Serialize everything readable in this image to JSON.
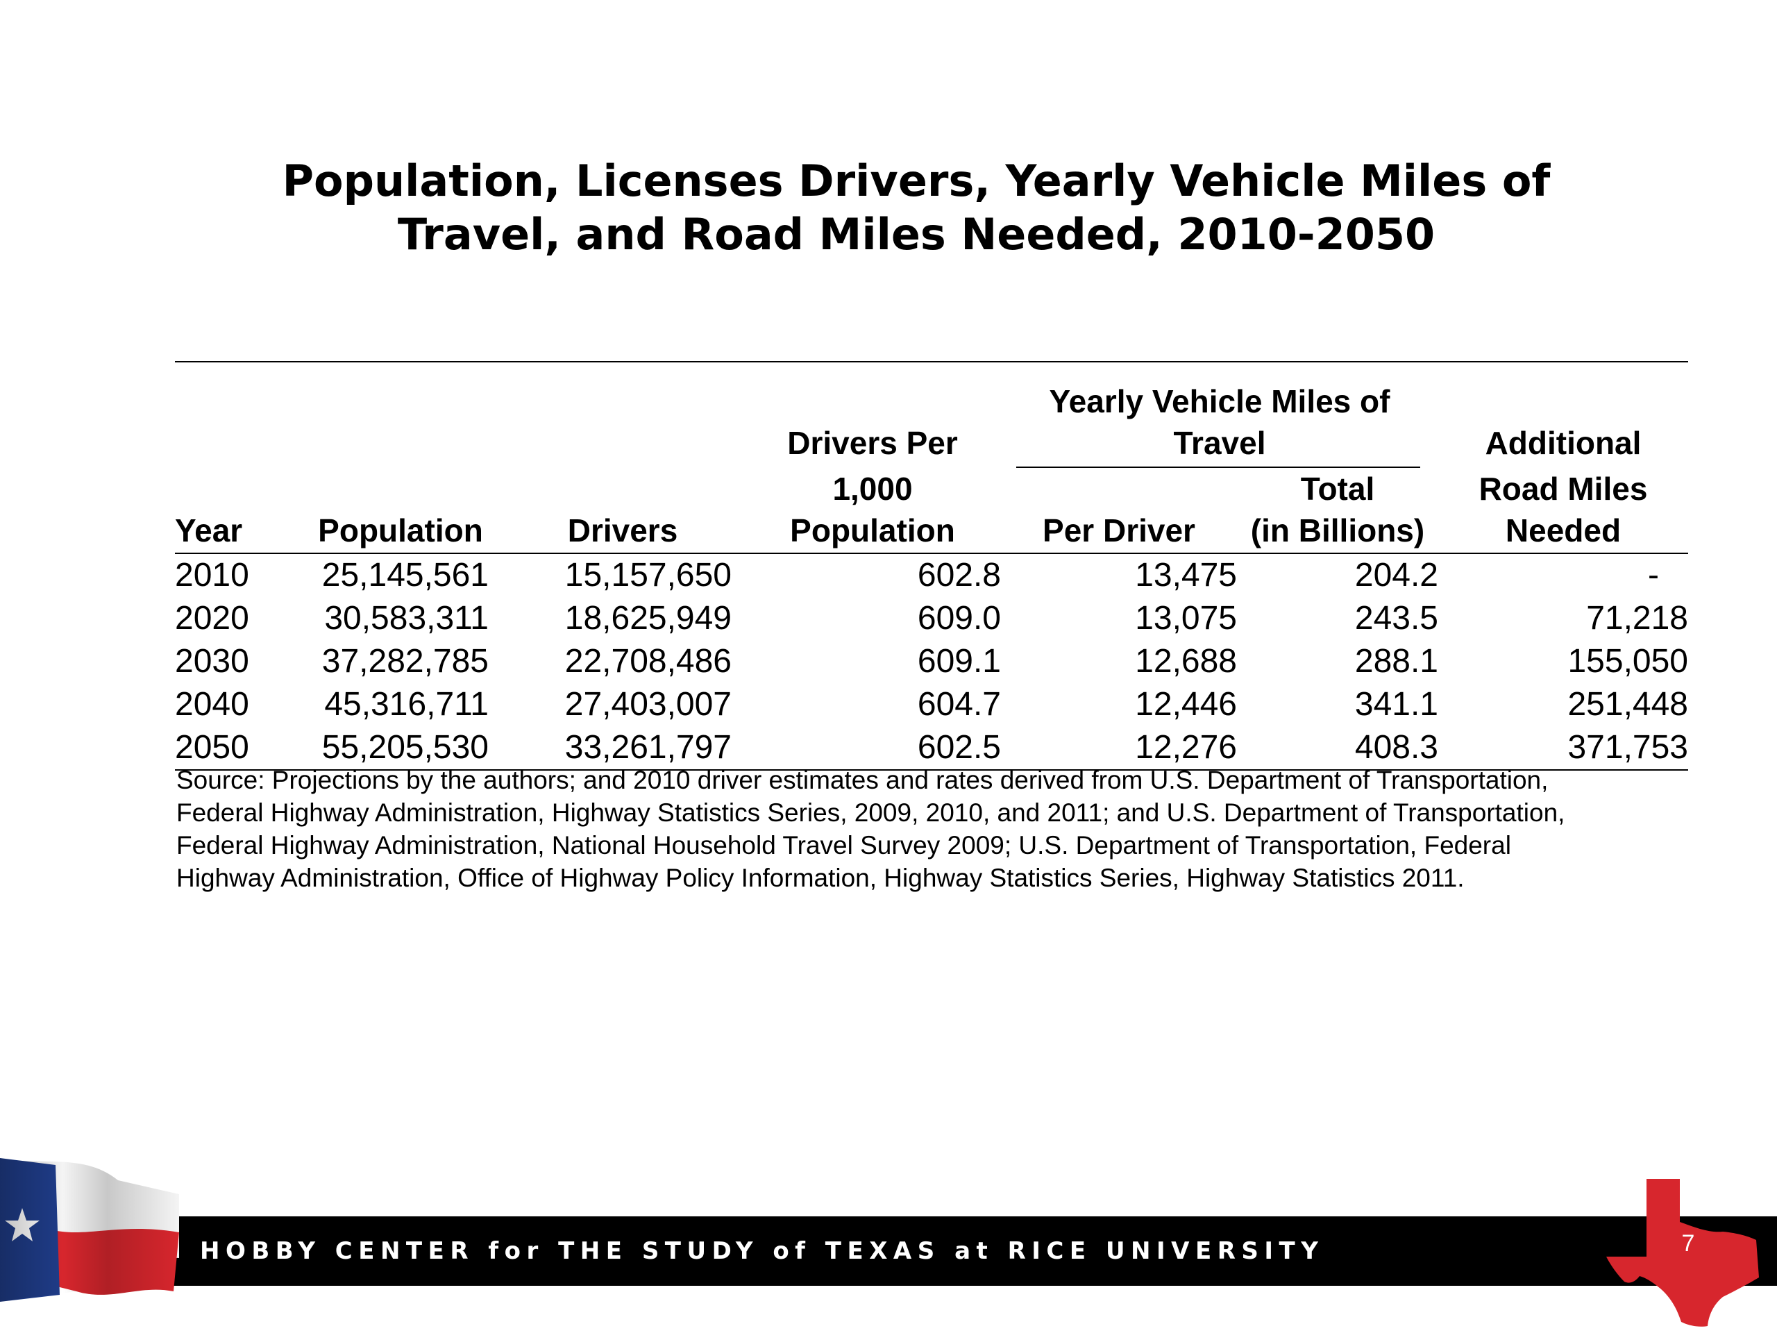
{
  "slide": {
    "title_lines": [
      "Population, Licenses Drivers, Yearly Vehicle Miles of",
      "Travel, and Road Miles Needed, 2010-2050"
    ]
  },
  "table": {
    "headers": {
      "year": "Year",
      "population": "Population",
      "drivers": "Drivers",
      "drivers_per_line1": "Drivers Per",
      "drivers_per_line2": "1,000",
      "drivers_per_line3": "Population",
      "vmt_group_line1": "Yearly Vehicle Miles of",
      "vmt_group_line2": "Travel",
      "per_driver": "Per Driver",
      "total_line1": "Total",
      "total_line2": "(in Billions)",
      "additional_line1": "Additional",
      "additional_line2": "Road Miles",
      "additional_line3": "Needed"
    },
    "rows": [
      {
        "year": "2010",
        "population": "25,145,561",
        "drivers": "15,157,650",
        "drivers_per_1000": "602.8",
        "per_driver": "13,475",
        "total_billions": "204.2",
        "additional_road_miles": "-"
      },
      {
        "year": "2020",
        "population": "30,583,311",
        "drivers": "18,625,949",
        "drivers_per_1000": "609.0",
        "per_driver": "13,075",
        "total_billions": "243.5",
        "additional_road_miles": "71,218"
      },
      {
        "year": "2030",
        "population": "37,282,785",
        "drivers": "22,708,486",
        "drivers_per_1000": "609.1",
        "per_driver": "12,688",
        "total_billions": "288.1",
        "additional_road_miles": "155,050"
      },
      {
        "year": "2040",
        "population": "45,316,711",
        "drivers": "27,403,007",
        "drivers_per_1000": "604.7",
        "per_driver": "12,446",
        "total_billions": "341.1",
        "additional_road_miles": "251,448"
      },
      {
        "year": "2050",
        "population": "55,205,530",
        "drivers": "33,261,797",
        "drivers_per_1000": "602.5",
        "per_driver": "12,276",
        "total_billions": "408.3",
        "additional_road_miles": "371,753"
      }
    ],
    "source_lines": [
      "Source: Projections by the authors; and 2010 driver estimates and rates derived from U.S. Department of Transportation,",
      "Federal Highway Administration, Highway Statistics Series, 2009, 2010, and 2011; and U.S. Department of Transportation,",
      "Federal Highway Administration, National Household Travel Survey 2009; U.S. Department of Transportation, Federal",
      "Highway Administration, Office of Highway Policy Information, Highway Statistics Series, Highway Statistics 2011."
    ]
  },
  "footer": {
    "organization": "HOBBY CENTER for THE STUDY of TEXAS at RICE UNIVERSITY",
    "page_number": "7",
    "colors": {
      "bar": "#000000",
      "texas_red": "#d7262d",
      "flag_blue": "#1f3c88"
    },
    "icons": [
      "texas-flag-icon",
      "texas-state-map-icon"
    ]
  }
}
